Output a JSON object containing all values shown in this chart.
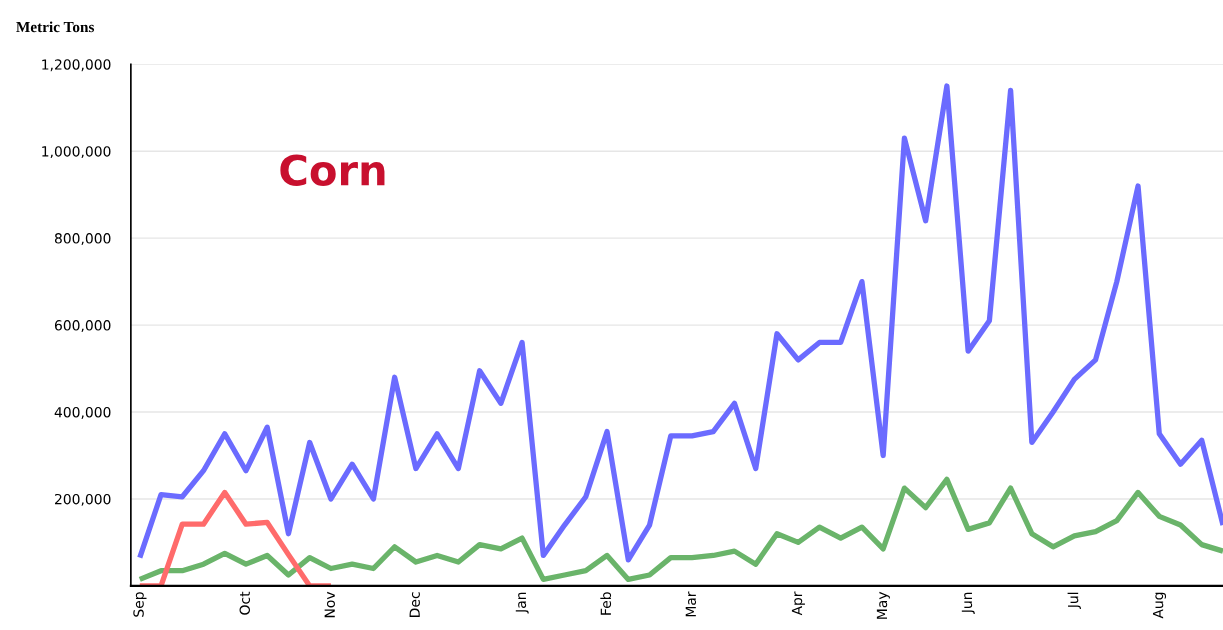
{
  "chart_data": {
    "type": "line",
    "ylabel": "Metric Tons",
    "annotations": [
      "Corn"
    ],
    "categories": [
      "Sep",
      null,
      null,
      null,
      null,
      "Oct",
      null,
      null,
      null,
      "Nov",
      null,
      null,
      null,
      "Dec",
      null,
      null,
      null,
      null,
      "Jan",
      null,
      null,
      null,
      "Feb",
      null,
      null,
      null,
      "Mar",
      null,
      null,
      null,
      null,
      "Apr",
      null,
      null,
      null,
      "May",
      null,
      null,
      null,
      "Jun",
      null,
      null,
      null,
      null,
      "Jul",
      null,
      null,
      null,
      "Aug",
      null,
      null,
      null
    ],
    "series": [
      {
        "color": "#6b6bff",
        "values": [
          65000,
          210000,
          205000,
          265000,
          350000,
          265000,
          365000,
          120000,
          330000,
          200000,
          280000,
          200000,
          480000,
          270000,
          350000,
          270000,
          495000,
          420000,
          560000,
          70000,
          140000,
          205000,
          355000,
          60000,
          140000,
          345000,
          345000,
          355000,
          420000,
          270000,
          580000,
          520000,
          560000,
          560000,
          700000,
          300000,
          1030000,
          840000,
          1150000,
          540000,
          610000,
          1140000,
          330000,
          400000,
          475000,
          520000,
          700000,
          920000,
          350000,
          280000,
          335000,
          140000
        ]
      },
      {
        "color": "#6ab46a",
        "values": [
          15000,
          35000,
          35000,
          50000,
          75000,
          50000,
          70000,
          25000,
          65000,
          40000,
          50000,
          40000,
          90000,
          55000,
          70000,
          55000,
          95000,
          85000,
          110000,
          15000,
          25000,
          35000,
          70000,
          15000,
          25000,
          65000,
          65000,
          70000,
          80000,
          50000,
          120000,
          100000,
          135000,
          110000,
          135000,
          85000,
          225000,
          180000,
          245000,
          130000,
          145000,
          225000,
          120000,
          90000,
          115000,
          125000,
          150000,
          215000,
          160000,
          140000,
          95000,
          80000
        ]
      },
      {
        "color": "#ff6b6b",
        "values": [
          0,
          0,
          142000,
          142000,
          215000,
          142000,
          146000,
          72000,
          0,
          0,
          null,
          null,
          null,
          null,
          null,
          null,
          null,
          null,
          null,
          null,
          null,
          null,
          null,
          null,
          null,
          null,
          null,
          null,
          null,
          null,
          null,
          null,
          null,
          null,
          null,
          null,
          null,
          null,
          null,
          null,
          null,
          null,
          null,
          null,
          null,
          null,
          null,
          null,
          null,
          null,
          null,
          null
        ]
      }
    ],
    "ylim": [
      0,
      1200000
    ],
    "yticks": [
      {
        "value": 200000,
        "label": "200,000"
      },
      {
        "value": 400000,
        "label": "400,000"
      },
      {
        "value": 600000,
        "label": "600,000"
      },
      {
        "value": 800000,
        "label": "800,000"
      },
      {
        "value": 1000000,
        "label": "1,000,000"
      },
      {
        "value": 1200000,
        "label": "1,200,000"
      }
    ],
    "grid": "y",
    "line_style": "solid",
    "marker": "none"
  }
}
